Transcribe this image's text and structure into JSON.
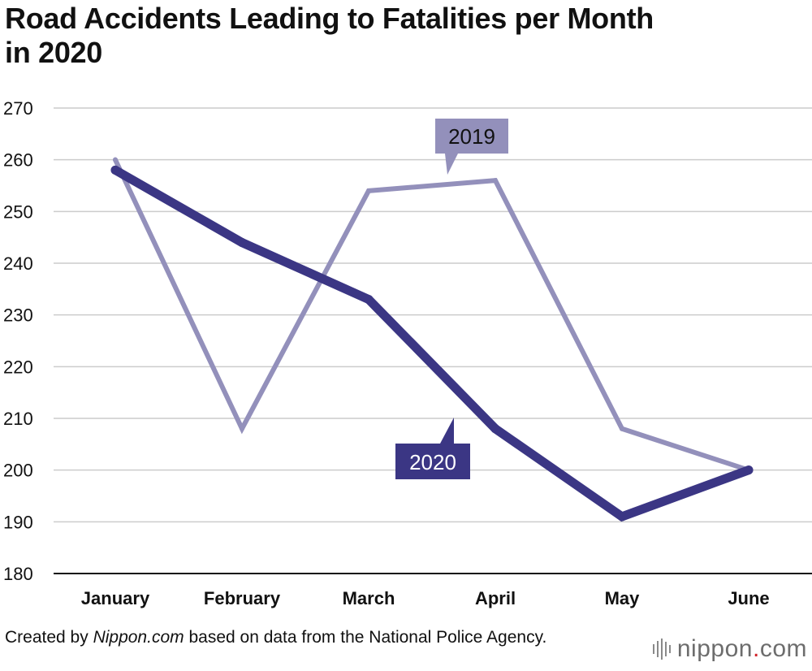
{
  "title_line1": "Road Accidents Leading to Fatalities per Month",
  "title_line2": "in 2020",
  "source": {
    "prefix": "Created by ",
    "publisher": "Nippon.com",
    "suffix": " based on data from the National Police Agency."
  },
  "logo": {
    "name": "nippon",
    "dot": ".",
    "tld": "com"
  },
  "colors": {
    "series_2020": "#3b3684",
    "series_2019": "#9390bb",
    "grid": "#cccccc",
    "axis": "#111111"
  },
  "chart_data": {
    "type": "line",
    "title": "Road Accidents Leading to Fatalities per Month in 2020",
    "categories": [
      "January",
      "February",
      "March",
      "April",
      "May",
      "June"
    ],
    "series": [
      {
        "name": "2019",
        "values": [
          260,
          208,
          254,
          256,
          208,
          200
        ]
      },
      {
        "name": "2020",
        "values": [
          258,
          244,
          233,
          208,
          191,
          200
        ]
      }
    ],
    "yticks": [
      180,
      190,
      200,
      210,
      220,
      230,
      240,
      250,
      260,
      270
    ],
    "ylim": [
      180,
      270
    ],
    "xlabel": "",
    "ylabel": "",
    "grid": true,
    "legend": "callout labels on lines"
  }
}
